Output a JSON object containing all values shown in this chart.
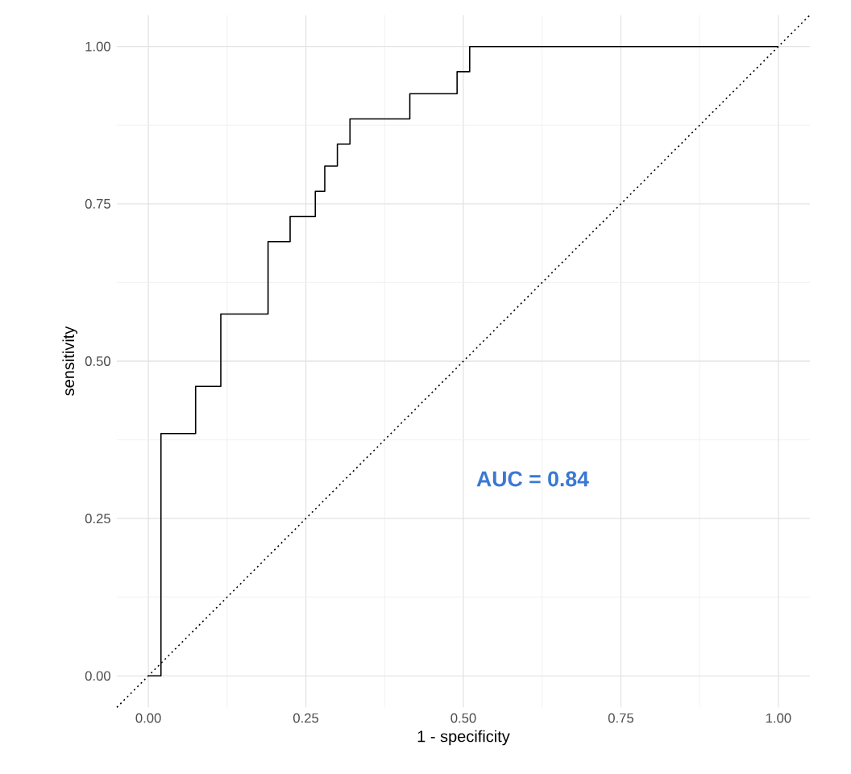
{
  "chart_data": {
    "type": "step",
    "xlabel": "1 - specificity",
    "ylabel": "sensitivity",
    "series": [
      {
        "color": "#000000",
        "line_style": "solid",
        "x": [
          0,
          0.02,
          0.075,
          0.115,
          0.19,
          0.225,
          0.265,
          0.28,
          0.3,
          0.32,
          0.415,
          0.49,
          0.51,
          1.0
        ],
        "values": [
          0,
          0.385,
          0.46,
          0.575,
          0.69,
          0.73,
          0.77,
          0.81,
          0.845,
          0.885,
          0.925,
          0.96,
          1.0,
          1.0
        ]
      },
      {
        "type": "line",
        "color": "#000000",
        "line_style": "dotted",
        "x": [
          -0.05,
          1.05
        ],
        "values": [
          -0.05,
          1.05
        ]
      }
    ],
    "xlim": [
      -0.05,
      1.05
    ],
    "ylim": [
      -0.05,
      1.05
    ],
    "xticks": [
      {
        "value": 0,
        "label": "0.00"
      },
      {
        "value": 0.25,
        "label": "0.25"
      },
      {
        "value": 0.5,
        "label": "0.50"
      },
      {
        "value": 0.75,
        "label": "0.75"
      },
      {
        "value": 1,
        "label": "1.00"
      }
    ],
    "yticks": [
      {
        "value": 0,
        "label": "0.00"
      },
      {
        "value": 0.25,
        "label": "0.25"
      },
      {
        "value": 0.5,
        "label": "0.50"
      },
      {
        "value": 0.75,
        "label": "0.75"
      },
      {
        "value": 1,
        "label": "1.00"
      }
    ],
    "grid": true,
    "annotations": [
      "AUC = 0.84"
    ]
  }
}
